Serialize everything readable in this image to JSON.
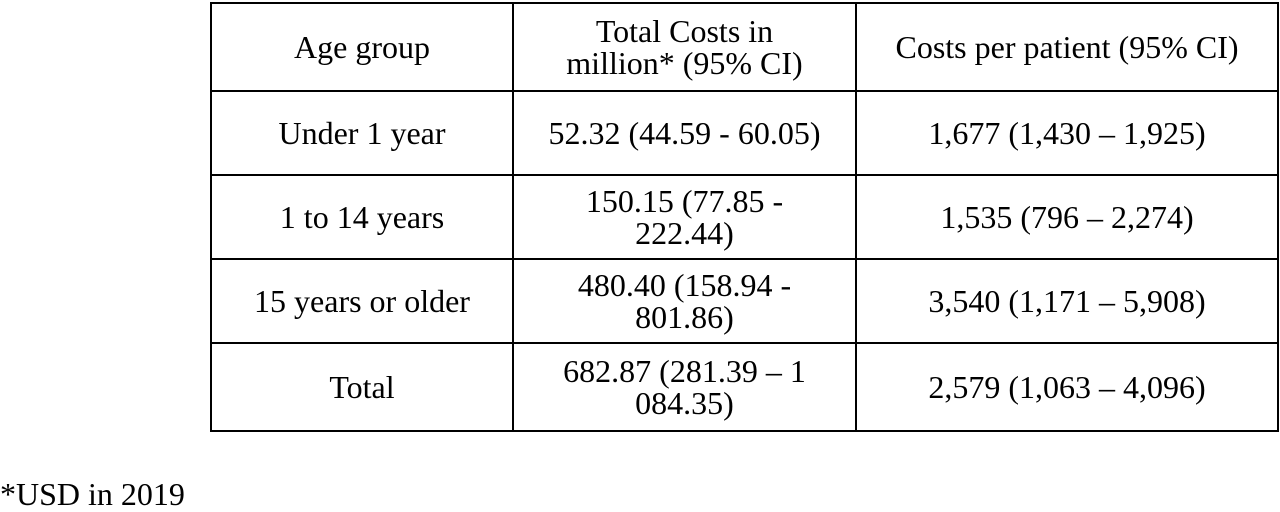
{
  "table": {
    "headers": [
      "Age group",
      "Total Costs in million* (95% CI)",
      "Costs per patient (95% CI)"
    ],
    "rows": [
      [
        "Under 1 year",
        "52.32 (44.59 - 60.05)",
        "1,677 (1,430 – 1,925)"
      ],
      [
        "1 to 14 years",
        "150.15 (77.85 - 222.44)",
        "1,535 (796 – 2,274)"
      ],
      [
        "15 years or older",
        "480.40 (158.94 - 801.86)",
        "3,540 (1,171 – 5,908)"
      ],
      [
        "Total",
        "682.87 (281.39 – 1 084.35)",
        "2,579 (1,063 – 4,096)"
      ]
    ]
  },
  "footnote": "*USD in 2019"
}
